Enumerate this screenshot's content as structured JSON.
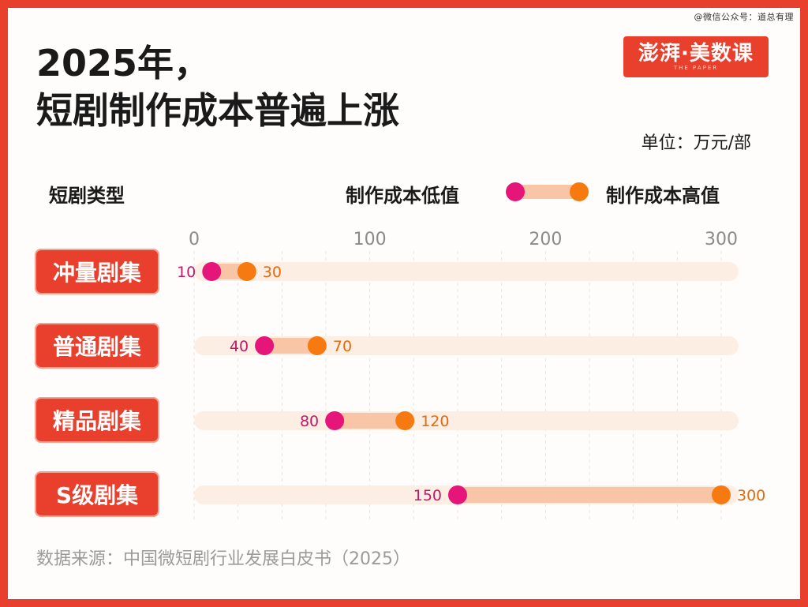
{
  "watermark": "@微信公众号：道总有理",
  "title_line1": "2025年，",
  "title_line2": "短剧制作成本普遍上涨",
  "logo": {
    "main": "澎湃·美数课",
    "sub": "THE PAPER"
  },
  "unit": "单位：万元/部",
  "type_header": "短剧类型",
  "legend": {
    "low": "制作成本低值",
    "high": "制作成本高值"
  },
  "source": "数据来源：中国微短剧行业发展白皮书（2025）",
  "colors": {
    "low": "#e5157a",
    "high": "#f77a10",
    "range": "#f8c6a6",
    "track": "#fdeee4",
    "accent": "#e8402c"
  },
  "chart_data": {
    "type": "dumbbell",
    "categories": [
      "冲量剧集",
      "普通剧集",
      "精品剧集",
      "S级剧集"
    ],
    "series": [
      {
        "name": "制作成本低值",
        "values": [
          10,
          40,
          80,
          150
        ]
      },
      {
        "name": "制作成本高值",
        "values": [
          30,
          70,
          120,
          300
        ]
      }
    ],
    "xlim": [
      0,
      300
    ],
    "xticks": [
      0,
      100,
      200,
      300
    ],
    "grid": true,
    "legend_position": "top-right"
  }
}
